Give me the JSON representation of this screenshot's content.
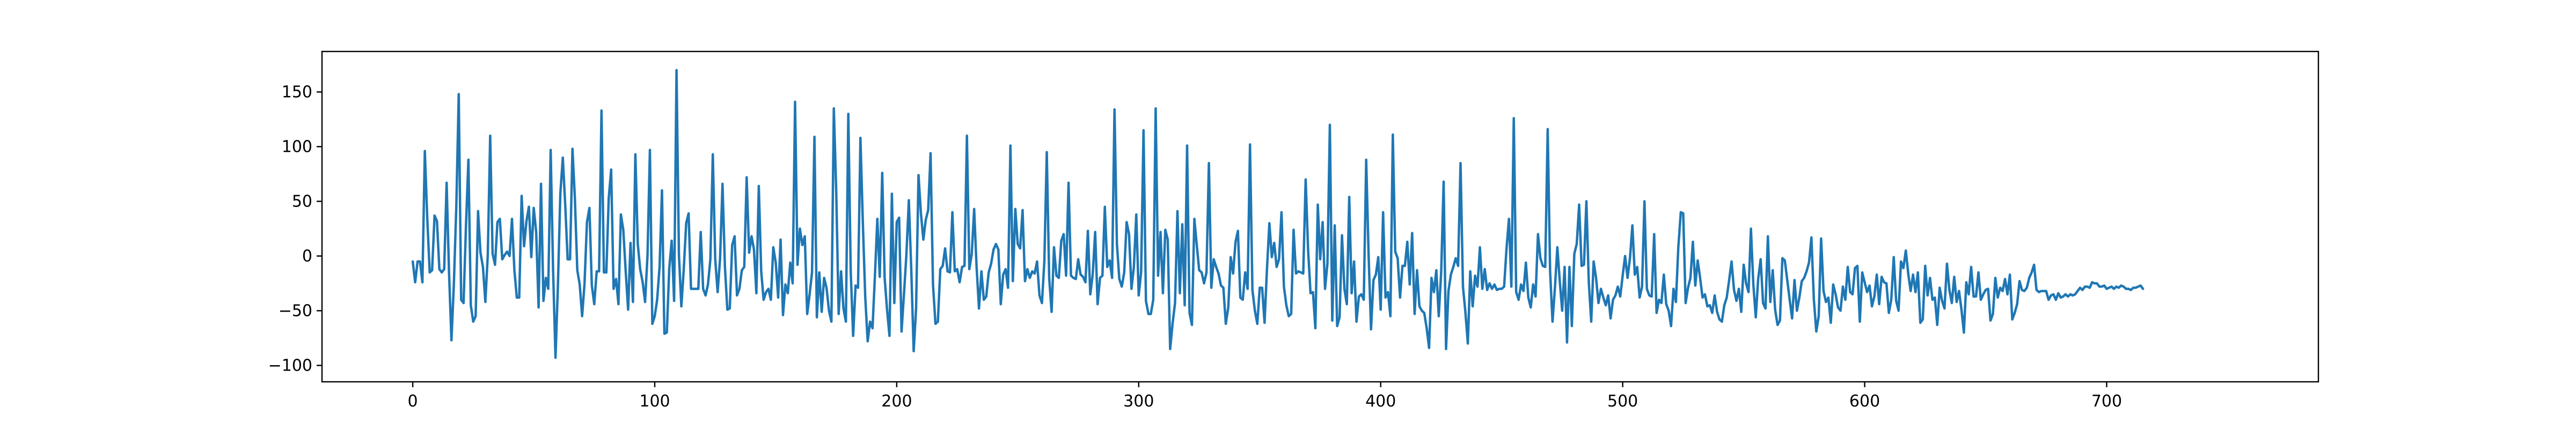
{
  "chart_data": {
    "type": "line",
    "title": "",
    "xlabel": "",
    "ylabel": "",
    "xlim": [
      -37.5,
      787.5
    ],
    "ylim": [
      -115,
      187
    ],
    "grid": false,
    "legend": "none",
    "xticks": [
      0,
      100,
      200,
      300,
      400,
      500,
      600,
      700
    ],
    "yticks": [
      -100,
      -50,
      0,
      50,
      100,
      150
    ],
    "series": [
      {
        "color": "#1f77b4",
        "x_start": 0,
        "x_step": 1,
        "values": [
          -5,
          -24,
          -5,
          -5,
          -24,
          96,
          35,
          -15,
          -13,
          37,
          32,
          -12,
          -15,
          -12,
          67,
          -15,
          -77,
          -26,
          46,
          148,
          -40,
          -43,
          28,
          88,
          -45,
          -60,
          -55,
          41,
          3,
          -10,
          -42,
          1,
          110,
          2,
          -8,
          31,
          34,
          -3,
          1,
          4,
          0,
          34,
          -13,
          -38,
          -38,
          55,
          9,
          32,
          45,
          -1,
          44,
          22,
          -47,
          66,
          -41,
          -20,
          -30,
          97,
          -13,
          -93,
          -27,
          57,
          90,
          47,
          -3,
          -3,
          98,
          53,
          -13,
          -26,
          -55,
          -25,
          31,
          44,
          -27,
          -44,
          -14,
          -14,
          133,
          -15,
          -15,
          53,
          79,
          -30,
          -21,
          -44,
          38,
          24,
          -14,
          -49,
          12,
          -42,
          93,
          11,
          -12,
          -24,
          -42,
          0,
          97,
          -62,
          -55,
          -40,
          -10,
          60,
          -71,
          -70,
          -11,
          14,
          -41,
          170,
          1,
          -46,
          -12,
          30,
          39,
          -30,
          -30,
          -30,
          -30,
          22,
          -30,
          -36,
          -26,
          -3,
          93,
          -3,
          -33,
          -3,
          66,
          -10,
          -49,
          -48,
          10,
          18,
          -36,
          -30,
          -13,
          -10,
          72,
          3,
          18,
          6,
          -34,
          64,
          -14,
          -40,
          -33,
          -30,
          -40,
          8,
          -6,
          -38,
          15,
          -54,
          -26,
          -34,
          -6,
          -25,
          141,
          -8,
          25,
          10,
          18,
          -53,
          -35,
          -15,
          109,
          -56,
          -15,
          -51,
          -20,
          -29,
          -50,
          -60,
          135,
          59,
          -53,
          -14,
          -48,
          -60,
          130,
          -14,
          -73,
          -27,
          -29,
          108,
          30,
          -38,
          -78,
          -60,
          -66,
          -18,
          34,
          -19,
          76,
          -20,
          -49,
          -73,
          57,
          -43,
          31,
          35,
          -69,
          -35,
          1,
          51,
          -12,
          -87,
          -48,
          74,
          39,
          15,
          33,
          42,
          94,
          -26,
          -62,
          -60,
          -12,
          -9,
          7,
          -14,
          -15,
          40,
          -14,
          -12,
          -24,
          -10,
          -9,
          110,
          -12,
          2,
          43,
          -10,
          -48,
          -14,
          -40,
          -37,
          -15,
          -7,
          6,
          11,
          6,
          -44,
          -17,
          -12,
          -29,
          101,
          -23,
          43,
          11,
          7,
          42,
          -23,
          -12,
          -20,
          -14,
          -16,
          -5,
          -36,
          -43,
          -5,
          95,
          -20,
          -51,
          8,
          -18,
          -20,
          14,
          20,
          -18,
          67,
          -18,
          -20,
          -21,
          -3,
          -17,
          -19,
          -24,
          23,
          -35,
          -17,
          22,
          -44,
          -20,
          -18,
          45,
          -10,
          -4,
          -20,
          134,
          11,
          -21,
          -28,
          -15,
          31,
          20,
          -30,
          -10,
          38,
          -36,
          -15,
          115,
          -41,
          -53,
          -53,
          -40,
          135,
          -18,
          22,
          -34,
          24,
          15,
          -85,
          -62,
          -43,
          41,
          -34,
          29,
          -45,
          101,
          -52,
          -63,
          34,
          10,
          -13,
          -15,
          -25,
          -15,
          85,
          -29,
          -3,
          -10,
          -16,
          -27,
          -29,
          -62,
          -47,
          -1,
          -16,
          13,
          23,
          -38,
          -40,
          -15,
          -30,
          102,
          -31,
          -50,
          -62,
          -29,
          -29,
          -61,
          -12,
          30,
          -1,
          12,
          -10,
          -3,
          40,
          -28,
          -45,
          -55,
          -53,
          24,
          -16,
          -14,
          -15,
          -16,
          70,
          5,
          -34,
          -33,
          -66,
          47,
          -3,
          31,
          -30,
          -7,
          120,
          -59,
          28,
          -64,
          -56,
          19,
          -30,
          -44,
          54,
          -34,
          -5,
          -60,
          -37,
          -35,
          -40,
          88,
          1,
          -67,
          -22,
          -17,
          -1,
          -49,
          40,
          -38,
          -33,
          -55,
          111,
          4,
          -2,
          -38,
          -9,
          -9,
          13,
          -26,
          21,
          -53,
          -13,
          -46,
          -50,
          -52,
          -66,
          -84,
          -20,
          -33,
          -13,
          -55,
          -14,
          68,
          -85,
          -32,
          -17,
          -10,
          -2,
          -9,
          85,
          -28,
          -51,
          -80,
          -14,
          -46,
          -18,
          -28,
          8,
          -30,
          -12,
          -31,
          -25,
          -30,
          -26,
          -31,
          -30,
          -30,
          -28,
          7,
          34,
          -28,
          126,
          -33,
          -40,
          -26,
          -32,
          -6,
          -38,
          -47,
          -26,
          -37,
          20,
          -2,
          -9,
          -10,
          116,
          -14,
          -60,
          -29,
          8,
          -23,
          -50,
          -10,
          -79,
          -10,
          -64,
          2,
          11,
          47,
          -9,
          -8,
          50,
          -24,
          -60,
          -5,
          -20,
          -43,
          -30,
          -38,
          -45,
          -36,
          -57,
          -40,
          -36,
          -28,
          -37,
          -18,
          0,
          -20,
          -2,
          28,
          -17,
          -10,
          -38,
          -28,
          50,
          -30,
          -36,
          -37,
          20,
          -52,
          -40,
          -43,
          -17,
          -44,
          -50,
          -64,
          -30,
          -42,
          8,
          40,
          39,
          -43,
          -29,
          -20,
          13,
          -27,
          -4,
          -20,
          -38,
          -35,
          -46,
          -45,
          -52,
          -36,
          -51,
          -58,
          -60,
          -45,
          -38,
          -22,
          -5,
          -31,
          -41,
          -30,
          -51,
          -8,
          -25,
          -33,
          25,
          -26,
          -56,
          -21,
          -3,
          -43,
          -48,
          18,
          -42,
          -13,
          -49,
          -63,
          -59,
          -2,
          -4,
          -22,
          -40,
          -57,
          -22,
          -50,
          -38,
          -23,
          -20,
          -14,
          -6,
          17,
          -40,
          -69,
          -55,
          16,
          -32,
          -42,
          -38,
          -61,
          -26,
          -35,
          -47,
          -50,
          -28,
          -40,
          -10,
          -33,
          -35,
          -11,
          -9,
          -60,
          -15,
          -24,
          -33,
          -27,
          -46,
          -37,
          -17,
          -44,
          -19,
          -24,
          -25,
          -52,
          -40,
          -1,
          -41,
          -50,
          -5,
          -11,
          5,
          -16,
          -32,
          -17,
          -33,
          -15,
          -61,
          -58,
          -9,
          -36,
          -20,
          -40,
          -38,
          -63,
          -29,
          -41,
          -48,
          -7,
          -31,
          -43,
          -19,
          -42,
          -32,
          -49,
          -70,
          -24,
          -35,
          -10,
          -37,
          -37,
          -15,
          -40,
          -35,
          -31,
          -30,
          -59,
          -53,
          -20,
          -38,
          -29,
          -32,
          -21,
          -35,
          -17,
          -58,
          -52,
          -44,
          -23,
          -31,
          -32,
          -29,
          -20,
          -15,
          -8,
          -31,
          -33,
          -32,
          -32,
          -32,
          -40,
          -36,
          -35,
          -40,
          -34,
          -38,
          -37,
          -35,
          -37,
          -35,
          -36,
          -35,
          -32,
          -29,
          -31,
          -28,
          -28,
          -29,
          -24,
          -25,
          -25,
          -28,
          -28,
          -27,
          -30,
          -29,
          -28,
          -30,
          -28,
          -29,
          -27,
          -28,
          -30,
          -30,
          -31,
          -29,
          -29,
          -28,
          -27,
          -30
        ]
      }
    ]
  }
}
